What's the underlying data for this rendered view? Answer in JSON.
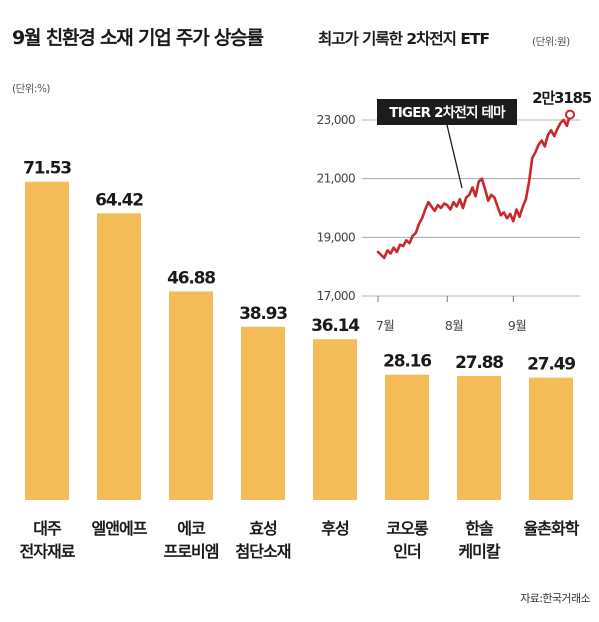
{
  "chart_data": [
    {
      "type": "bar",
      "title": "9월 친환경 소재 기업 주가 상승률",
      "unit": "(단위:%)",
      "categories": [
        [
          "대주",
          "전자재료"
        ],
        [
          "엘앤에프"
        ],
        [
          "에코",
          "프로비엠"
        ],
        [
          "효성",
          "첨단소재"
        ],
        [
          "후성"
        ],
        [
          "코오롱",
          "인더"
        ],
        [
          "한솔",
          "케미칼"
        ],
        [
          "율촌화학"
        ]
      ],
      "values": [
        71.53,
        64.42,
        46.88,
        38.93,
        36.14,
        28.16,
        27.88,
        27.49
      ],
      "value_labels": [
        "71.53",
        "64.42",
        "46.88",
        "38.93",
        "36.14",
        "28.16",
        "27.88",
        "27.49"
      ],
      "ylim": [
        0,
        100
      ],
      "color": "#f4bd5a"
    },
    {
      "type": "line",
      "title": "최고가 기록한 2차전지 ETF",
      "unit": "(단위:원)",
      "series": [
        {
          "name": "TIGER 2차전지 테마",
          "color": "#c8282c",
          "x": [
            "07-01",
            "07-02",
            "07-05",
            "07-06",
            "07-07",
            "07-08",
            "07-09",
            "07-12",
            "07-13",
            "07-14",
            "07-15",
            "07-16",
            "07-19",
            "07-20",
            "07-21",
            "07-22",
            "07-23",
            "07-26",
            "07-27",
            "07-28",
            "07-29",
            "07-30",
            "08-02",
            "08-03",
            "08-04",
            "08-05",
            "08-06",
            "08-09",
            "08-10",
            "08-11",
            "08-12",
            "08-13",
            "08-17",
            "08-18",
            "08-19",
            "08-20",
            "08-23",
            "08-24",
            "08-25",
            "08-26",
            "08-27",
            "08-30",
            "08-31",
            "09-01",
            "09-02",
            "09-03",
            "09-06",
            "09-07",
            "09-08",
            "09-09",
            "09-10",
            "09-13",
            "09-14",
            "09-15",
            "09-16",
            "09-17",
            "09-23",
            "09-24",
            "09-27",
            "09-28",
            "09-29",
            "09-30"
          ],
          "values": [
            18500,
            18400,
            18300,
            18550,
            18450,
            18650,
            18500,
            18750,
            18700,
            18900,
            18800,
            19050,
            19150,
            19450,
            19650,
            19950,
            20200,
            20050,
            19900,
            20100,
            20000,
            20150,
            20100,
            19950,
            20200,
            20050,
            20300,
            20000,
            20350,
            20450,
            20700,
            20400,
            20900,
            21000,
            20650,
            20250,
            20450,
            20350,
            20050,
            19750,
            19850,
            19650,
            19800,
            19550,
            19950,
            19700,
            20050,
            20300,
            20900,
            21700,
            21900,
            22150,
            22300,
            22100,
            22500,
            22650,
            22450,
            22700,
            22900,
            23000,
            22800,
            23185
          ]
        }
      ],
      "yticks": [
        "17,000",
        "19,000",
        "21,000",
        "23,000"
      ],
      "ytick_values": [
        17000,
        19000,
        21000,
        23000
      ],
      "ylim": [
        17000,
        23500
      ],
      "xtick_labels": [
        "7월",
        "8월",
        "9월"
      ],
      "end_label": "2만3185",
      "grid": true
    }
  ],
  "source": "자료:한국거래소"
}
